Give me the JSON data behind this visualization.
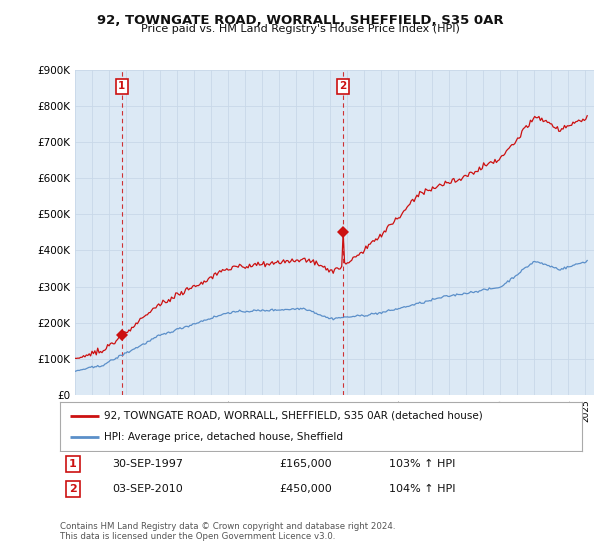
{
  "title": "92, TOWNGATE ROAD, WORRALL, SHEFFIELD, S35 0AR",
  "subtitle": "Price paid vs. HM Land Registry's House Price Index (HPI)",
  "legend_line1": "92, TOWNGATE ROAD, WORRALL, SHEFFIELD, S35 0AR (detached house)",
  "legend_line2": "HPI: Average price, detached house, Sheffield",
  "sale1_date_str": "30-SEP-1997",
  "sale1_price_str": "£165,000",
  "sale1_hpi_str": "103% ↑ HPI",
  "sale2_date_str": "03-SEP-2010",
  "sale2_price_str": "£450,000",
  "sale2_hpi_str": "104% ↑ HPI",
  "footer": "Contains HM Land Registry data © Crown copyright and database right 2024.\nThis data is licensed under the Open Government Licence v3.0.",
  "hpi_color": "#5b8fc9",
  "sale_color": "#cc1111",
  "plot_bg_color": "#dce9f5",
  "sale1_x": 1997.75,
  "sale1_y": 165000,
  "sale2_x": 2010.75,
  "sale2_y": 450000,
  "ylim": [
    0,
    900000
  ],
  "xlim": [
    1995,
    2025.5
  ],
  "yticks": [
    0,
    100000,
    200000,
    300000,
    400000,
    500000,
    600000,
    700000,
    800000,
    900000
  ],
  "ytick_labels": [
    "£0",
    "£100K",
    "£200K",
    "£300K",
    "£400K",
    "£500K",
    "£600K",
    "£700K",
    "£800K",
    "£900K"
  ],
  "background": "#ffffff",
  "grid_color": "#c8d8e8"
}
